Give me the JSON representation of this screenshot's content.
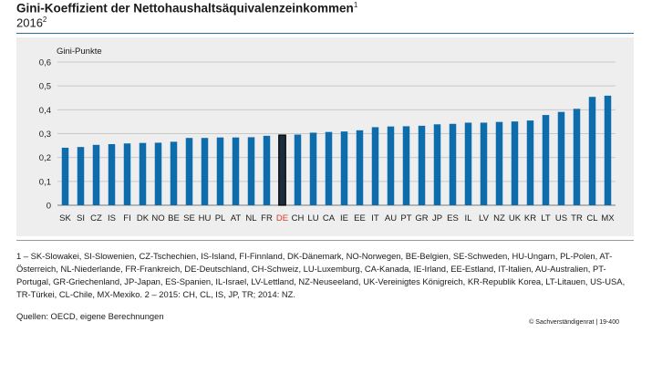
{
  "header": {
    "title": "Gini-Koeffizient der Nettohaushaltsäquivalenzeinkommen",
    "title_footnote_mark": "1",
    "subtitle": "2016",
    "subtitle_footnote_mark": "2"
  },
  "chart_data": {
    "type": "bar",
    "ylabel": "Gini-Punkte",
    "ylim": [
      0,
      0.6
    ],
    "yticks": [
      0,
      0.1,
      0.2,
      0.3,
      0.4,
      0.5,
      0.6
    ],
    "ytick_labels": [
      "0",
      "0,1",
      "0,2",
      "0,3",
      "0,4",
      "0,5",
      "0,6"
    ],
    "grid": true,
    "categories": [
      "SK",
      "SI",
      "CZ",
      "IS",
      "FI",
      "DK",
      "NO",
      "BE",
      "SE",
      "HU",
      "PL",
      "AT",
      "NL",
      "FR",
      "DE",
      "CH",
      "LU",
      "CA",
      "IE",
      "EE",
      "IT",
      "AU",
      "PT",
      "GR",
      "JP",
      "ES",
      "IL",
      "LV",
      "NZ",
      "UK",
      "KR",
      "LT",
      "US",
      "TR",
      "CL",
      "MX"
    ],
    "values": [
      0.241,
      0.244,
      0.253,
      0.256,
      0.259,
      0.261,
      0.262,
      0.266,
      0.282,
      0.282,
      0.284,
      0.284,
      0.285,
      0.291,
      0.294,
      0.296,
      0.304,
      0.307,
      0.309,
      0.314,
      0.327,
      0.33,
      0.331,
      0.333,
      0.339,
      0.341,
      0.346,
      0.346,
      0.349,
      0.351,
      0.355,
      0.378,
      0.391,
      0.404,
      0.454,
      0.459
    ],
    "highlight": "DE",
    "colors": {
      "bar": "#0d6cab",
      "highlight_fill": "#1b2d3c",
      "highlight_label": "#d93a2b",
      "grid": "#c8c8c8",
      "frame": "#eeeeee"
    }
  },
  "footnotes": {
    "line1": "1 – SK-Slowakei, SI-Slowenien, CZ-Tschechien, IS-Island, FI-Finnland, DK-Dänemark, NO-Norwegen, BE-Belgien, SE-Schweden, HU-Ungarn, PL-Polen, AT-Österreich, NL-Niederlande, FR-Frankreich, DE-Deutschland, CH-Schweiz, LU-Luxemburg, CA-Kanada, IE-Irland, EE-Estland, IT-Italien, AU-Australien, PT-Portugal, GR-Griechenland, JP-Japan, ES-Spanien, IL-Israel, LV-Lettland, NZ-Neuseeland, UK-Vereinigtes Königreich, KR-Republik Korea, LT-Litauen, US-USA, TR-Türkei, CL-Chile, MX-Mexiko.",
    "line2": "2 – 2015: CH, CL, IS, JP, TR; 2014: NZ."
  },
  "sources": "Quellen: OECD, eigene Berechnungen",
  "copyright": "© Sachverständigenrat | 19-400"
}
